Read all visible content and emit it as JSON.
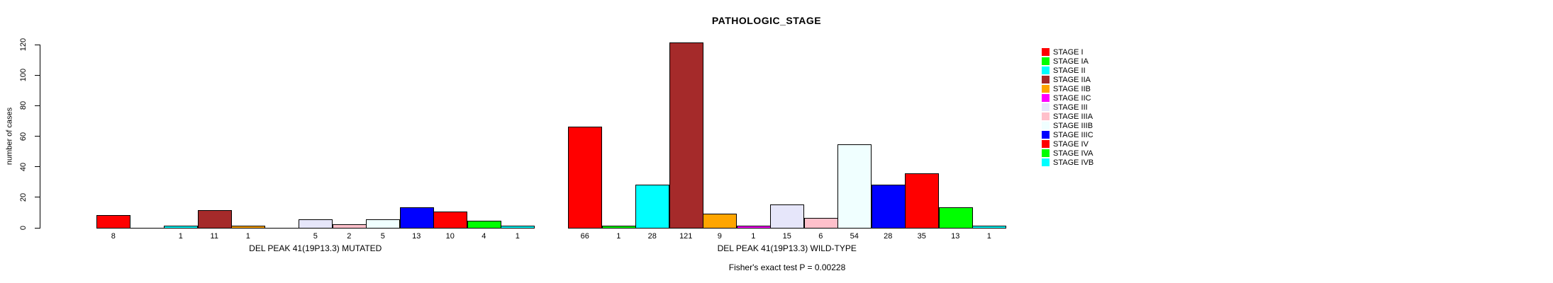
{
  "title": "PATHOLOGIC_STAGE",
  "y_axis": {
    "label": "number of cases",
    "ticks": [
      0,
      20,
      40,
      60,
      80,
      100,
      120
    ]
  },
  "footer": "Fisher's exact test P = 0.00228",
  "legend": {
    "items": [
      {
        "label": "STAGE I",
        "color": "#FF0000"
      },
      {
        "label": "STAGE IA",
        "color": "#00FF00"
      },
      {
        "label": "STAGE II",
        "color": "#00FFFF"
      },
      {
        "label": "STAGE IIA",
        "color": "#A52A2A"
      },
      {
        "label": "STAGE IIB",
        "color": "#FFA500"
      },
      {
        "label": "STAGE IIC",
        "color": "#FF00FF"
      },
      {
        "label": "STAGE III",
        "color": "#E6E6FA"
      },
      {
        "label": "STAGE IIIA",
        "color": "#FFC0CB"
      },
      {
        "label": "STAGE IIIB",
        "color": "#F0FFFF"
      },
      {
        "label": "STAGE IIIC",
        "color": "#0000FF"
      },
      {
        "label": "STAGE IV",
        "color": "#FF0000"
      },
      {
        "label": "STAGE IVA",
        "color": "#00FF00"
      },
      {
        "label": "STAGE IVB",
        "color": "#00FFFF"
      }
    ]
  },
  "chart_data": {
    "type": "bar",
    "title": "PATHOLOGIC_STAGE",
    "xlabel": "",
    "ylabel": "number of cases",
    "ylim": [
      0,
      120
    ],
    "yticks": [
      0,
      20,
      40,
      60,
      80,
      100,
      120
    ],
    "grid": false,
    "legend_position": "right",
    "categories": [
      "STAGE I",
      "STAGE IA",
      "STAGE II",
      "STAGE IIA",
      "STAGE IIB",
      "STAGE IIC",
      "STAGE III",
      "STAGE IIIA",
      "STAGE IIIB",
      "STAGE IIIC",
      "STAGE IV",
      "STAGE IVA",
      "STAGE IVB"
    ],
    "colors": [
      "#FF0000",
      "#00FF00",
      "#00FFFF",
      "#A52A2A",
      "#FFA500",
      "#FF00FF",
      "#E6E6FA",
      "#FFC0CB",
      "#F0FFFF",
      "#0000FF",
      "#FF0000",
      "#00FF00",
      "#00FFFF"
    ],
    "groups": [
      {
        "label": "DEL PEAK 41(19P13.3) MUTATED",
        "values": [
          8,
          0,
          1,
          11,
          1,
          0,
          5,
          2,
          5,
          13,
          10,
          4,
          1
        ]
      },
      {
        "label": "DEL PEAK 41(19P13.3) WILD-TYPE",
        "values": [
          66,
          1,
          28,
          121,
          9,
          1,
          15,
          6,
          54,
          28,
          35,
          13,
          1
        ]
      }
    ],
    "bar_value_labels": "shown under each nonzero bar",
    "annotation": "Fisher's exact test P = 0.00228"
  }
}
